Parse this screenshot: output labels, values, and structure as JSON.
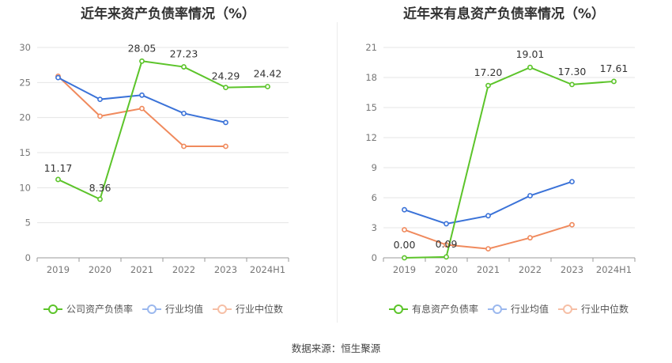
{
  "colors": {
    "company": "#5cc42a",
    "industry_avg": "#3a72d8",
    "industry_median": "#f08a5d",
    "grid": "#e5e5e5",
    "axis": "#999999"
  },
  "source": "数据来源：恒生聚源",
  "chart_data": [
    {
      "type": "line",
      "title": "近年来资产负债率情况（%）",
      "categories": [
        "2019",
        "2020",
        "2021",
        "2022",
        "2023",
        "2024H1"
      ],
      "ylim": [
        0,
        30
      ],
      "yticks": [
        0,
        5,
        10,
        15,
        20,
        25,
        30
      ],
      "grid": true,
      "legend_position": "bottom",
      "series": [
        {
          "name": "公司资产负债率",
          "color": "#5cc42a",
          "values": [
            11.17,
            8.36,
            28.05,
            27.23,
            24.29,
            24.42
          ],
          "labels": [
            "11.17",
            "8.36",
            "28.05",
            "27.23",
            "24.29",
            "24.42"
          ]
        },
        {
          "name": "行业均值",
          "color": "#3a72d8",
          "values": [
            25.7,
            22.6,
            23.2,
            20.6,
            19.3,
            null
          ]
        },
        {
          "name": "行业中位数",
          "color": "#f08a5d",
          "values": [
            25.9,
            20.2,
            21.3,
            15.9,
            15.9,
            null
          ]
        }
      ]
    },
    {
      "type": "line",
      "title": "近年来有息资产负债率情况（%）",
      "categories": [
        "2019",
        "2020",
        "2021",
        "2022",
        "2023",
        "2024H1"
      ],
      "ylim": [
        0,
        21
      ],
      "yticks": [
        0,
        3,
        6,
        9,
        12,
        15,
        18,
        21
      ],
      "grid": true,
      "legend_position": "bottom",
      "series": [
        {
          "name": "有息资产负债率",
          "color": "#5cc42a",
          "values": [
            0.0,
            0.09,
            17.2,
            19.01,
            17.3,
            17.61
          ],
          "labels": [
            "0.00",
            "0.09",
            "17.20",
            "19.01",
            "17.30",
            "17.61"
          ]
        },
        {
          "name": "行业均值",
          "color": "#3a72d8",
          "values": [
            4.8,
            3.4,
            4.2,
            6.2,
            7.6,
            null
          ]
        },
        {
          "name": "行业中位数",
          "color": "#f08a5d",
          "values": [
            2.8,
            1.3,
            0.9,
            2.0,
            3.3,
            null
          ]
        }
      ]
    }
  ]
}
